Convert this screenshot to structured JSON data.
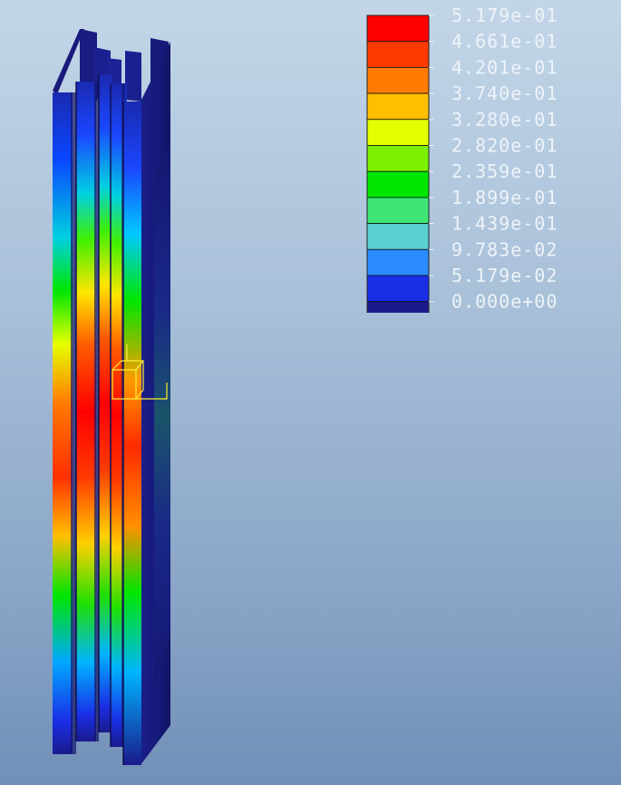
{
  "legend": {
    "labels": [
      "5.179e-01",
      "4.661e-01",
      "4.201e-01",
      "3.740e-01",
      "3.280e-01",
      "2.820e-01",
      "2.359e-01",
      "1.899e-01",
      "1.439e-01",
      "9.783e-02",
      "5.179e-02",
      "0.000e+00"
    ],
    "colors": [
      "#ff0000",
      "#ff3a00",
      "#ff7a00",
      "#ffbf00",
      "#e6ff00",
      "#7cf000",
      "#00e600",
      "#3fe676",
      "#5ad0d2",
      "#2a8cff",
      "#1a2ee6",
      "#1a1a8c"
    ]
  },
  "model": {
    "field_colors": {
      "max": "#ff0000",
      "high": "#ff7a00",
      "mid": "#ffff00",
      "low": "#00e600",
      "lower": "#00b4ff",
      "min": "#1a2ab0",
      "base": "#1a1a8c"
    }
  }
}
